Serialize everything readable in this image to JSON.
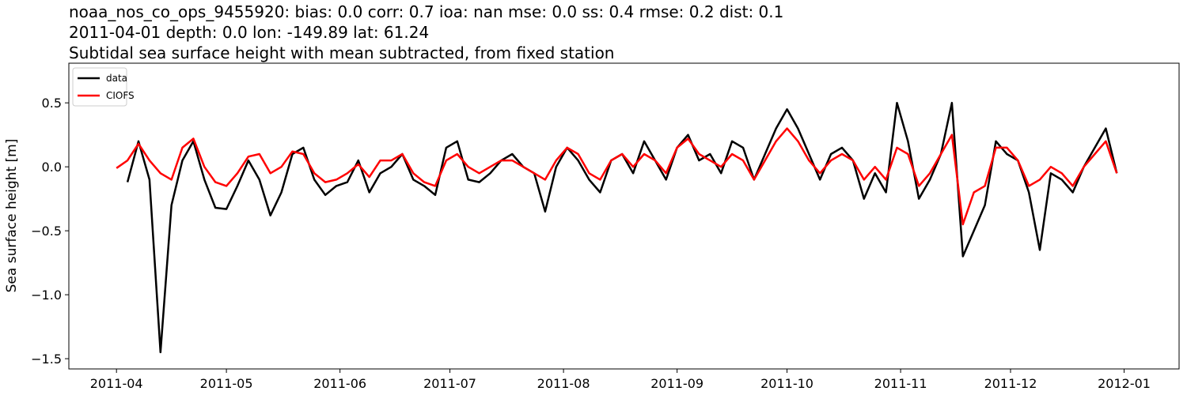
{
  "chart_data": {
    "type": "line",
    "title": "noaa_nos_co_ops_9455920: bias: 0.0  corr: 0.7  ioa: nan  mse: 0.0  ss: 0.4  rmse: 0.2  dist: 0.1",
    "subtitle": "2011-04-01 depth: 0.0 lon: -149.89 lat: 61.24",
    "subtitle2": "Subtidal sea surface height with mean subtracted, from fixed station",
    "ylabel": "Sea surface height [m]",
    "x": [
      "2011-04-01",
      "2011-04-04",
      "2011-04-07",
      "2011-04-10",
      "2011-04-13",
      "2011-04-16",
      "2011-04-19",
      "2011-04-22",
      "2011-04-25",
      "2011-04-28",
      "2011-05-01",
      "2011-05-04",
      "2011-05-07",
      "2011-05-10",
      "2011-05-13",
      "2011-05-16",
      "2011-05-19",
      "2011-05-22",
      "2011-05-25",
      "2011-05-28",
      "2011-05-31",
      "2011-06-03",
      "2011-06-06",
      "2011-06-09",
      "2011-06-12",
      "2011-06-15",
      "2011-06-18",
      "2011-06-21",
      "2011-06-24",
      "2011-06-27",
      "2011-06-30",
      "2011-07-03",
      "2011-07-06",
      "2011-07-09",
      "2011-07-12",
      "2011-07-15",
      "2011-07-18",
      "2011-07-21",
      "2011-07-24",
      "2011-07-27",
      "2011-07-30",
      "2011-08-02",
      "2011-08-05",
      "2011-08-08",
      "2011-08-11",
      "2011-08-14",
      "2011-08-17",
      "2011-08-20",
      "2011-08-23",
      "2011-08-26",
      "2011-08-29",
      "2011-09-01",
      "2011-09-04",
      "2011-09-07",
      "2011-09-10",
      "2011-09-13",
      "2011-09-16",
      "2011-09-19",
      "2011-09-22",
      "2011-09-25",
      "2011-09-28",
      "2011-10-01",
      "2011-10-04",
      "2011-10-07",
      "2011-10-10",
      "2011-10-13",
      "2011-10-16",
      "2011-10-19",
      "2011-10-22",
      "2011-10-25",
      "2011-10-28",
      "2011-10-31",
      "2011-11-03",
      "2011-11-06",
      "2011-11-09",
      "2011-11-12",
      "2011-11-15",
      "2011-11-18",
      "2011-11-21",
      "2011-11-24",
      "2011-11-27",
      "2011-11-30",
      "2011-12-03",
      "2011-12-06",
      "2011-12-09",
      "2011-12-12",
      "2011-12-15",
      "2011-12-18",
      "2011-12-21",
      "2011-12-24",
      "2011-12-27",
      "2011-12-30"
    ],
    "series": [
      {
        "name": "data",
        "color": "#000000",
        "values": [
          null,
          -0.12,
          0.2,
          -0.1,
          -1.45,
          -0.3,
          0.05,
          0.2,
          -0.1,
          -0.32,
          -0.33,
          -0.15,
          0.05,
          -0.1,
          -0.38,
          -0.2,
          0.1,
          0.15,
          -0.1,
          -0.22,
          -0.15,
          -0.12,
          0.05,
          -0.2,
          -0.05,
          0.0,
          0.1,
          -0.1,
          -0.15,
          -0.22,
          0.15,
          0.2,
          -0.1,
          -0.12,
          -0.05,
          0.05,
          0.1,
          0.0,
          -0.05,
          -0.35,
          0.0,
          0.15,
          0.05,
          -0.1,
          -0.2,
          0.05,
          0.1,
          -0.05,
          0.2,
          0.05,
          -0.1,
          0.15,
          0.25,
          0.05,
          0.1,
          -0.05,
          0.2,
          0.15,
          -0.1,
          0.1,
          0.3,
          0.45,
          0.3,
          0.1,
          -0.1,
          0.1,
          0.15,
          0.05,
          -0.25,
          -0.05,
          -0.2,
          0.5,
          0.2,
          -0.25,
          -0.1,
          0.1,
          0.5,
          -0.7,
          -0.5,
          -0.3,
          0.2,
          0.1,
          0.05,
          -0.2,
          -0.65,
          -0.05,
          -0.1,
          -0.2,
          0.0,
          0.15,
          0.3,
          -0.05
        ]
      },
      {
        "name": "CIOFS",
        "color": "#ff0000",
        "values": [
          -0.01,
          0.05,
          0.18,
          0.05,
          -0.05,
          -0.1,
          0.15,
          0.22,
          0.0,
          -0.12,
          -0.15,
          -0.05,
          0.08,
          0.1,
          -0.05,
          0.0,
          0.12,
          0.1,
          -0.05,
          -0.12,
          -0.1,
          -0.05,
          0.02,
          -0.08,
          0.05,
          0.05,
          0.1,
          -0.05,
          -0.12,
          -0.15,
          0.05,
          0.1,
          0.0,
          -0.05,
          0.0,
          0.05,
          0.05,
          0.0,
          -0.05,
          -0.1,
          0.05,
          0.15,
          0.1,
          -0.05,
          -0.1,
          0.05,
          0.1,
          0.0,
          0.1,
          0.05,
          -0.05,
          0.15,
          0.22,
          0.1,
          0.05,
          0.0,
          0.1,
          0.05,
          -0.1,
          0.05,
          0.2,
          0.3,
          0.2,
          0.05,
          -0.05,
          0.05,
          0.1,
          0.05,
          -0.1,
          0.0,
          -0.1,
          0.15,
          0.1,
          -0.15,
          -0.05,
          0.1,
          0.25,
          -0.45,
          -0.2,
          -0.15,
          0.15,
          0.15,
          0.05,
          -0.15,
          -0.1,
          0.0,
          -0.05,
          -0.15,
          0.0,
          0.1,
          0.2,
          -0.05
        ]
      }
    ],
    "xlim": [
      "2011-03-19",
      "2012-01-16"
    ],
    "xticks": [
      {
        "value": "2011-04-01",
        "label": "2011-04"
      },
      {
        "value": "2011-05-01",
        "label": "2011-05"
      },
      {
        "value": "2011-06-01",
        "label": "2011-06"
      },
      {
        "value": "2011-07-01",
        "label": "2011-07"
      },
      {
        "value": "2011-08-01",
        "label": "2011-08"
      },
      {
        "value": "2011-09-01",
        "label": "2011-09"
      },
      {
        "value": "2011-10-01",
        "label": "2011-10"
      },
      {
        "value": "2011-11-01",
        "label": "2011-11"
      },
      {
        "value": "2011-12-01",
        "label": "2011-12"
      },
      {
        "value": "2012-01-01",
        "label": "2012-01"
      }
    ],
    "ylim": [
      -1.58,
      0.81
    ],
    "yticks": [
      {
        "value": -1.5,
        "label": "−1.5"
      },
      {
        "value": -1.0,
        "label": "−1.0"
      },
      {
        "value": -0.5,
        "label": "−0.5"
      },
      {
        "value": 0.0,
        "label": "0.0"
      },
      {
        "value": 0.5,
        "label": "0.5"
      }
    ],
    "grid": false,
    "legend": "upper left"
  }
}
